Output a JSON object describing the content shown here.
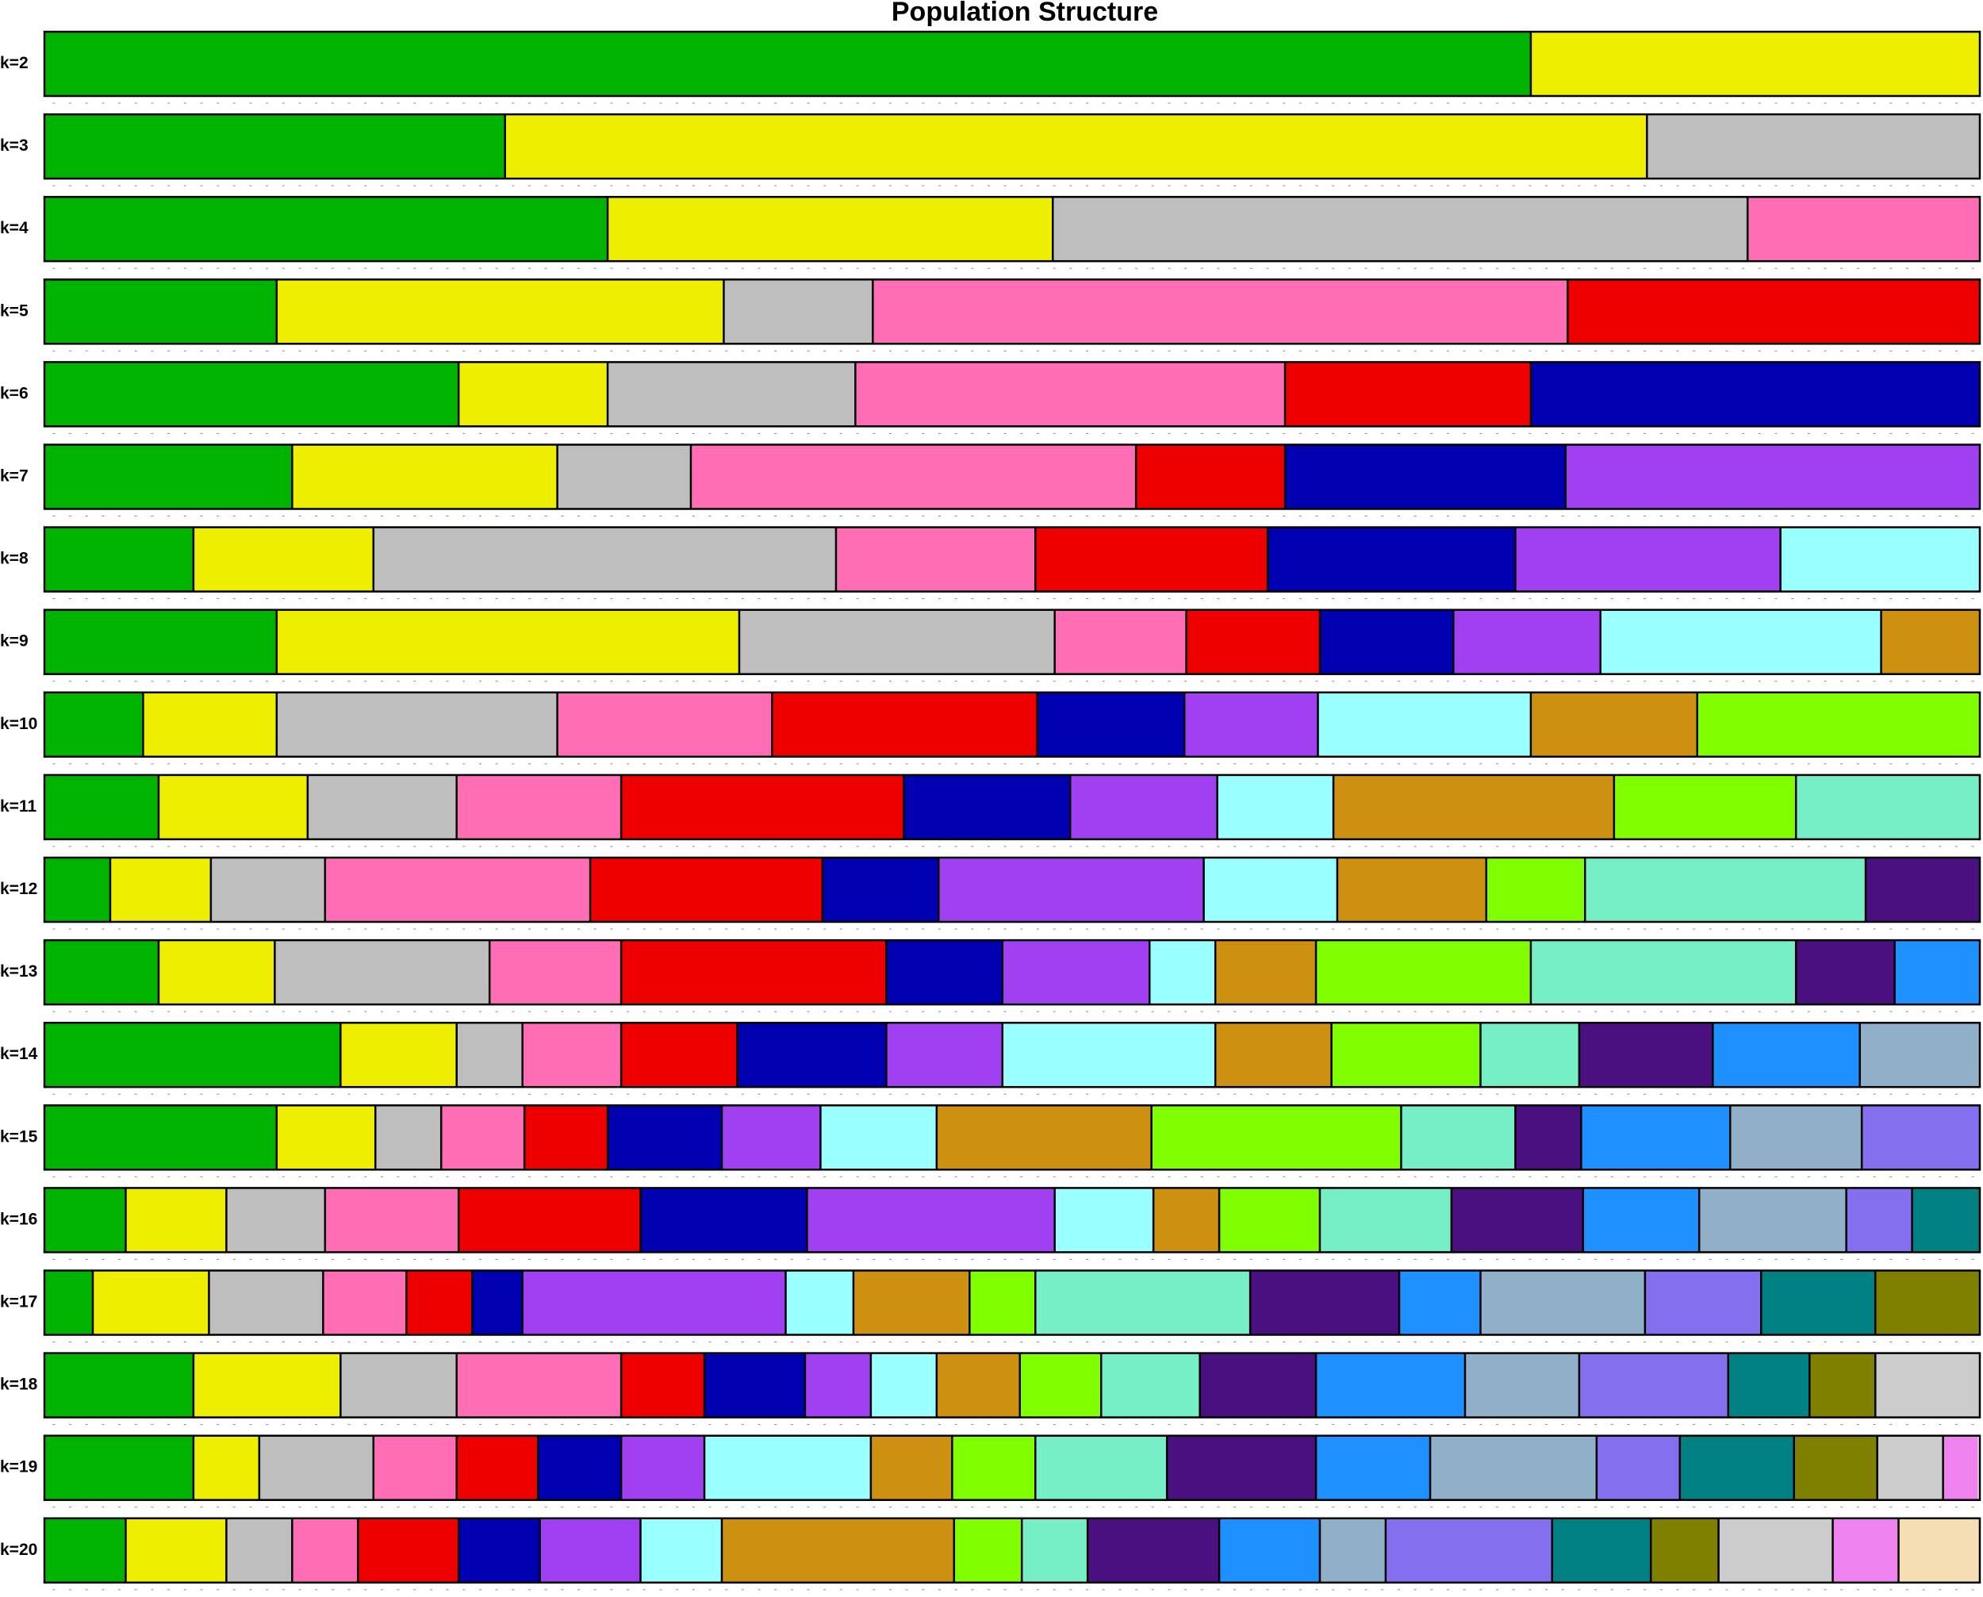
{
  "title": "Population Structure",
  "palette": [
    "#00b300",
    "#eeee00",
    "#bebebe",
    "#ff6eb4",
    "#ee0000",
    "#0000b0",
    "#a040f0",
    "#99ffff",
    "#cd9010",
    "#80ff00",
    "#76eec6",
    "#4b1080",
    "#1e90ff",
    "#8fb0c8",
    "#8470ee",
    "#008080",
    "#808000",
    "#cccccc",
    "#ee82ee",
    "#f5deb3"
  ],
  "chart_data": [
    {
      "type": "structure",
      "label": "k=2",
      "values": [
        76.8,
        23.2
      ]
    },
    {
      "type": "structure",
      "label": "k=3",
      "values": [
        23.8,
        59.0,
        17.2
      ]
    },
    {
      "type": "structure",
      "label": "k=4",
      "values": [
        29.1,
        23.0,
        35.9,
        12.0
      ]
    },
    {
      "type": "structure",
      "label": "k=5",
      "values": [
        12.0,
        23.1,
        7.7,
        35.9,
        21.3
      ]
    },
    {
      "type": "structure",
      "label": "k=6",
      "values": [
        21.4,
        7.7,
        12.8,
        22.2,
        12.7,
        23.2
      ]
    },
    {
      "type": "structure",
      "label": "k=7",
      "values": [
        12.8,
        13.7,
        6.9,
        23.0,
        7.7,
        14.5,
        21.4
      ]
    },
    {
      "type": "structure",
      "label": "k=8",
      "values": [
        7.7,
        9.3,
        23.9,
        10.3,
        12.0,
        12.8,
        13.7,
        10.3
      ]
    },
    {
      "type": "structure",
      "label": "k=9",
      "values": [
        12.0,
        23.9,
        16.3,
        6.8,
        6.9,
        6.9,
        7.6,
        14.5,
        5.1
      ]
    },
    {
      "type": "structure",
      "label": "k=10",
      "values": [
        5.1,
        6.9,
        14.5,
        11.1,
        13.7,
        7.6,
        6.9,
        11.0,
        8.6,
        14.6
      ]
    },
    {
      "type": "structure",
      "label": "k=11",
      "values": [
        5.9,
        7.7,
        7.7,
        8.5,
        14.6,
        8.6,
        7.6,
        6.0,
        14.5,
        9.4,
        9.5
      ]
    },
    {
      "type": "structure",
      "label": "k=12",
      "values": [
        3.4,
        5.2,
        5.9,
        13.7,
        12.0,
        6.0,
        13.7,
        6.9,
        7.7,
        5.1,
        14.5,
        5.9
      ]
    },
    {
      "type": "structure",
      "label": "k=13",
      "values": [
        5.9,
        6.0,
        11.1,
        6.8,
        13.7,
        6.0,
        7.6,
        3.4,
        5.2,
        11.1,
        13.7,
        5.1,
        4.4
      ]
    },
    {
      "type": "structure",
      "label": "k=14",
      "values": [
        15.3,
        6.0,
        3.4,
        5.1,
        6.0,
        7.7,
        6.0,
        11.0,
        6.0,
        7.7,
        5.1,
        6.9,
        7.6,
        6.2
      ]
    },
    {
      "type": "structure",
      "label": "k=15",
      "values": [
        12.0,
        5.1,
        3.4,
        4.3,
        4.3,
        5.9,
        5.1,
        6.0,
        11.1,
        12.9,
        5.9,
        3.4,
        7.7,
        6.8,
        6.1
      ]
    },
    {
      "type": "structure",
      "label": "k=16",
      "values": [
        4.2,
        5.2,
        5.1,
        6.9,
        9.4,
        8.6,
        12.8,
        5.1,
        3.4,
        5.2,
        6.8,
        6.8,
        6.0,
        7.6,
        3.4,
        3.5
      ]
    },
    {
      "type": "structure",
      "label": "k=17",
      "values": [
        2.5,
        6.0,
        5.9,
        4.3,
        3.4,
        2.6,
        13.6,
        3.5,
        6.0,
        3.4,
        11.1,
        7.7,
        4.2,
        8.5,
        6.0,
        5.9,
        5.4
      ]
    },
    {
      "type": "structure",
      "label": "k=18",
      "values": [
        7.7,
        7.6,
        6.0,
        8.5,
        4.3,
        5.2,
        3.4,
        3.4,
        4.3,
        4.2,
        5.1,
        6.0,
        7.7,
        5.9,
        7.7,
        4.2,
        3.4,
        5.4
      ]
    },
    {
      "type": "structure",
      "label": "k=19",
      "values": [
        7.7,
        3.4,
        5.9,
        4.3,
        4.2,
        4.3,
        4.3,
        8.6,
        4.2,
        4.3,
        6.8,
        7.7,
        5.9,
        8.6,
        4.3,
        5.9,
        4.3,
        3.4,
        1.8
      ]
    },
    {
      "type": "structure",
      "label": "k=20",
      "values": [
        4.2,
        5.2,
        3.4,
        3.4,
        5.2,
        4.2,
        5.2,
        4.2,
        12.0,
        3.5,
        3.4,
        6.8,
        5.2,
        3.4,
        8.6,
        5.1,
        3.5,
        5.9,
        3.4,
        4.2
      ]
    }
  ]
}
